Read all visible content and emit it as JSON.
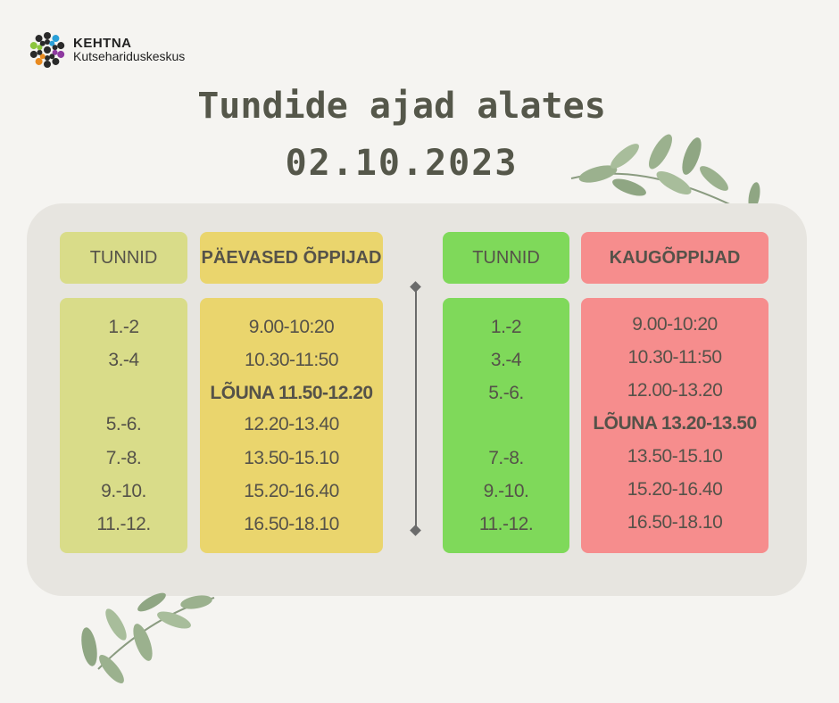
{
  "logo": {
    "name": "KEHTNA",
    "subtitle": "Kutsehariduskeskus",
    "icon": "kehtna-star-logo"
  },
  "title": {
    "line1": "Tundide ajad alates",
    "line2": "02.10.2023"
  },
  "colors": {
    "lessons_left": "#d9dc89",
    "day_students": "#ead56d",
    "lessons_right": "#7fd95a",
    "distance_students": "#f68d8d",
    "panel": "#e7e5e0",
    "text": "#55574a"
  },
  "left_table": {
    "lessons_header": "TUNNID",
    "times_header": "PÄEVASED ÕPPIJAD",
    "lessons": [
      "1.-2",
      "3.-4",
      "",
      "5.-6.",
      "7.-8.",
      "9.-10.",
      "11.-12."
    ],
    "times": [
      "9.00-10:20",
      "10.30-11:50",
      "LÕUNA 11.50-12.20",
      "12.20-13.40",
      "13.50-15.10",
      "15.20-16.40",
      "16.50-18.10"
    ]
  },
  "right_table": {
    "lessons_header": "TUNNID",
    "times_header": "KAUGÕPPIJAD",
    "lessons": [
      "1.-2",
      "3.-4",
      "5.-6.",
      "",
      "7.-8.",
      "9.-10.",
      "11.-12."
    ],
    "times": [
      "9.00-10:20",
      "10.30-11:50",
      "12.00-13.20",
      "LÕUNA 13.20-13.50",
      "13.50-15.10",
      "15.20-16.40",
      "16.50-18.10"
    ]
  }
}
